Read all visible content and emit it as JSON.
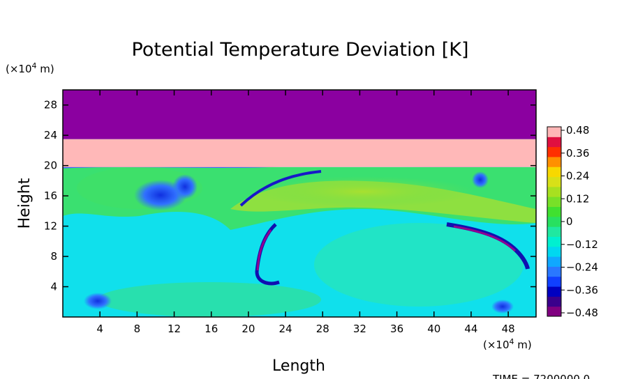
{
  "chart_data": {
    "type": "heatmap",
    "title": "Potential Temperature Deviation [K]",
    "xlabel": "Length",
    "ylabel": "Height",
    "x_unit_base": "(×10",
    "x_unit_exp": "4",
    "x_unit_tail": " m)",
    "y_unit_base": "(×10",
    "y_unit_exp": "4",
    "y_unit_tail": " m)",
    "x_ticks": [
      4,
      8,
      12,
      16,
      20,
      24,
      28,
      32,
      36,
      40,
      44,
      48
    ],
    "y_ticks": [
      4,
      8,
      12,
      16,
      20,
      24,
      28
    ],
    "xlim": [
      0,
      51
    ],
    "ylim": [
      0,
      30
    ],
    "colorbar": {
      "labels": [
        "0.48",
        "0.36",
        "0.24",
        "0.12",
        "0",
        "−0.12",
        "−0.24",
        "−0.36",
        "−0.48"
      ],
      "range": [
        -0.48,
        0.48
      ],
      "colors": [
        "#800080",
        "#3a008c",
        "#0000c0",
        "#1040ff",
        "#2a78ff",
        "#10a8ff",
        "#00d8f0",
        "#00f0d0",
        "#20e8a0",
        "#28e060",
        "#40e030",
        "#78e028",
        "#a8e020",
        "#d8e018",
        "#f8d800",
        "#ff9000",
        "#ff3000",
        "#e01040",
        "#ffb6b6"
      ]
    },
    "layers": [
      {
        "name": "upper-layer",
        "y_range": [
          23.5,
          30
        ],
        "value": -0.48,
        "color": "#8b00a0"
      },
      {
        "name": "middle-layer",
        "y_range": [
          19.8,
          23.5
        ],
        "value": 0.48,
        "color": "#ffb8b8"
      }
    ],
    "time_label": "TIME = 7200000.0"
  }
}
